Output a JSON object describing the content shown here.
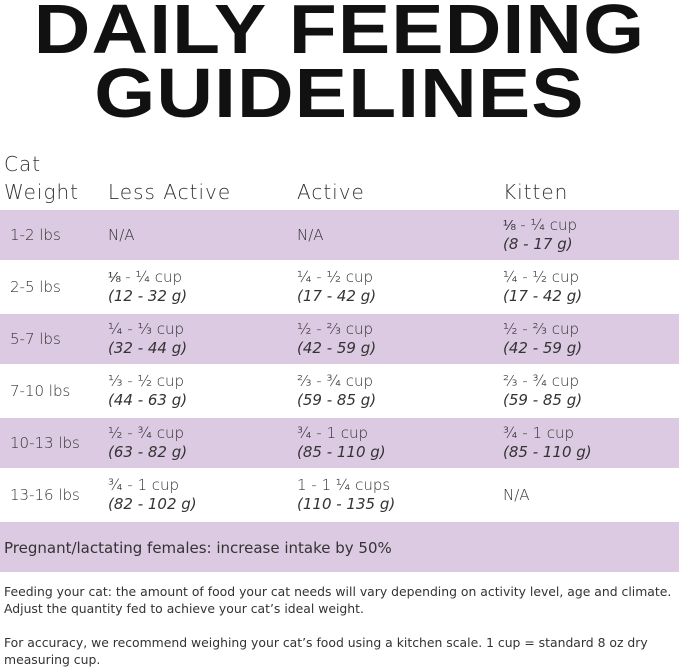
{
  "title": {
    "line1": "DAILY FEEDING",
    "line2": "GUIDELINES"
  },
  "colors": {
    "row_highlight": "#dccae2"
  },
  "table": {
    "headers": [
      "Cat",
      "Weight",
      "Less Active",
      "Active",
      "Kitten"
    ],
    "rows": [
      {
        "weight": "1-2 lbs",
        "cells": [
          {
            "cup": "N/A",
            "g": ""
          },
          {
            "cup": "N/A",
            "g": ""
          },
          {
            "cup": "⅛ - ¼ cup",
            "g": "(8 - 17 g)"
          }
        ]
      },
      {
        "weight": "2-5 lbs",
        "cells": [
          {
            "cup": "⅛ - ¼ cup",
            "g": "(12 - 32 g)"
          },
          {
            "cup": "¼ - ½ cup",
            "g": "(17 - 42 g)"
          },
          {
            "cup": "¼ - ½ cup",
            "g": "(17 - 42 g)"
          }
        ]
      },
      {
        "weight": "5-7 lbs",
        "cells": [
          {
            "cup": "¼ - ⅓ cup",
            "g": "(32 - 44 g)"
          },
          {
            "cup": "½ - ⅔ cup",
            "g": "(42 - 59 g)"
          },
          {
            "cup": "½ - ⅔ cup",
            "g": "(42 - 59 g)"
          }
        ]
      },
      {
        "weight": "7-10 lbs",
        "cells": [
          {
            "cup": "⅓ - ½ cup",
            "g": "(44 - 63 g)"
          },
          {
            "cup": "⅔ - ¾ cup",
            "g": "(59 - 85 g)"
          },
          {
            "cup": "⅔ - ¾ cup",
            "g": "(59 - 85 g)"
          }
        ]
      },
      {
        "weight": "10-13 lbs",
        "cells": [
          {
            "cup": "½ - ¾ cup",
            "g": "(63 - 82 g)"
          },
          {
            "cup": "¾ - 1 cup",
            "g": "(85 - 110 g)"
          },
          {
            "cup": "¾ - 1 cup",
            "g": "(85 - 110 g)"
          }
        ]
      },
      {
        "weight": "13-16 lbs",
        "cells": [
          {
            "cup": "¾ - 1 cup",
            "g": "(82 - 102 g)"
          },
          {
            "cup": "1 - 1 ¼ cups",
            "g": "(110 - 135 g)"
          },
          {
            "cup": "N/A",
            "g": ""
          }
        ]
      }
    ],
    "note": "Pregnant/lactating females: increase intake by 50%"
  },
  "footer": {
    "p1": "Feeding your cat: the amount of food your cat needs will vary depending on activity level, age and climate. Adjust the quantity fed to achieve your cat’s ideal weight.",
    "p2": "For accuracy, we recommend weighing your cat’s food using a kitchen scale. 1 cup = standard 8 oz dry measuring cup."
  }
}
